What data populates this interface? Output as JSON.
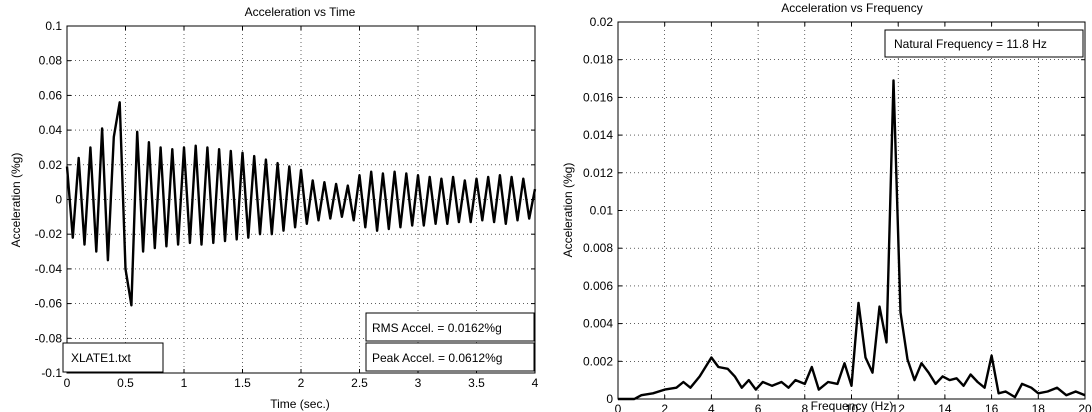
{
  "chart_data": [
    {
      "type": "line",
      "title": "Acceleration vs Time",
      "xlabel": "Time (sec.)",
      "ylabel": "Acceleration (%g)",
      "xlim": [
        0,
        4
      ],
      "ylim": [
        -0.1,
        0.1
      ],
      "xticks": [
        0,
        0.5,
        1,
        1.5,
        2,
        2.5,
        3,
        3.5,
        4
      ],
      "yticks": [
        -0.1,
        -0.08,
        -0.06,
        -0.04,
        -0.02,
        0,
        0.02,
        0.04,
        0.06,
        0.08,
        0.1
      ],
      "xtick_labels": [
        "0",
        "0.5",
        "1",
        "1.5",
        "2",
        "2.5",
        "3",
        "3.5",
        "4"
      ],
      "ytick_labels": [
        "-0.1",
        "-0.08",
        "-0.06",
        "-0.04",
        "-0.02",
        "0",
        "0.02",
        "0.04",
        "0.06",
        "0.08",
        "0.1"
      ],
      "grid": true,
      "line_color": "#000000",
      "annotations": {
        "file_label": "XLATE1.txt",
        "rms": "RMS Accel. = 0.0162%g",
        "peak": "Peak Accel. = 0.0612%g"
      },
      "series": [
        {
          "x": [
            0.0,
            0.05,
            0.1,
            0.15,
            0.2,
            0.25,
            0.3,
            0.35,
            0.4,
            0.45,
            0.5,
            0.55,
            0.6,
            0.65,
            0.7,
            0.75,
            0.8,
            0.85,
            0.9,
            0.95,
            1.0,
            1.05,
            1.1,
            1.15,
            1.2,
            1.25,
            1.3,
            1.35,
            1.4,
            1.45,
            1.5,
            1.55,
            1.6,
            1.65,
            1.7,
            1.75,
            1.8,
            1.85,
            1.9,
            1.95,
            2.0,
            2.05,
            2.1,
            2.15,
            2.2,
            2.25,
            2.3,
            2.35,
            2.4,
            2.45,
            2.5,
            2.55,
            2.6,
            2.65,
            2.7,
            2.75,
            2.8,
            2.85,
            2.9,
            2.95,
            3.0,
            3.05,
            3.1,
            3.15,
            3.2,
            3.25,
            3.3,
            3.35,
            3.4,
            3.45,
            3.5,
            3.55,
            3.6,
            3.65,
            3.7,
            3.75,
            3.8,
            3.85,
            3.9,
            3.95,
            4.0
          ],
          "values": [
            0.019,
            -0.022,
            0.024,
            -0.026,
            0.03,
            -0.03,
            0.041,
            -0.035,
            0.036,
            0.056,
            -0.04,
            -0.061,
            0.039,
            -0.03,
            0.033,
            -0.028,
            0.03,
            -0.027,
            0.029,
            -0.026,
            0.03,
            -0.025,
            0.031,
            -0.026,
            0.03,
            -0.025,
            0.029,
            -0.024,
            0.028,
            -0.023,
            0.027,
            -0.022,
            0.025,
            -0.02,
            0.023,
            -0.02,
            0.021,
            -0.018,
            0.019,
            -0.016,
            0.017,
            -0.014,
            0.011,
            -0.012,
            0.01,
            -0.011,
            0.009,
            -0.01,
            0.008,
            -0.012,
            0.014,
            -0.016,
            0.016,
            -0.018,
            0.015,
            -0.017,
            0.016,
            -0.016,
            0.015,
            -0.015,
            0.014,
            -0.015,
            0.013,
            -0.014,
            0.012,
            -0.014,
            0.013,
            -0.013,
            0.011,
            -0.013,
            0.012,
            -0.012,
            0.013,
            -0.013,
            0.014,
            -0.014,
            0.013,
            -0.012,
            0.012,
            -0.011,
            0.006
          ]
        }
      ]
    },
    {
      "type": "line",
      "title": "Acceleration vs Frequency",
      "xlabel": "Frequency (Hz)",
      "ylabel": "Acceleration (%g)",
      "xlim": [
        0,
        20
      ],
      "ylim": [
        0,
        0.02
      ],
      "xticks": [
        0,
        2,
        4,
        6,
        8,
        10,
        12,
        14,
        16,
        18,
        20
      ],
      "yticks": [
        0,
        0.002,
        0.004,
        0.006,
        0.008,
        0.01,
        0.012,
        0.014,
        0.016,
        0.018,
        0.02
      ],
      "xtick_labels": [
        "0",
        "2",
        "4",
        "6",
        "8",
        "10",
        "12",
        "14",
        "16",
        "18",
        "20"
      ],
      "ytick_labels": [
        "0",
        "0.002",
        "0.004",
        "0.006",
        "0.008",
        "0.01",
        "0.012",
        "0.014",
        "0.016",
        "0.018",
        "0.02"
      ],
      "grid": true,
      "line_color": "#000000",
      "annotations": {
        "natural_frequency": "Natural Frequency = 11.8 Hz"
      },
      "series": [
        {
          "x": [
            0.0,
            0.7,
            1.0,
            1.5,
            2.0,
            2.5,
            2.8,
            3.1,
            3.5,
            4.0,
            4.3,
            4.7,
            5.0,
            5.3,
            5.6,
            5.9,
            6.2,
            6.6,
            7.0,
            7.3,
            7.6,
            8.0,
            8.3,
            8.6,
            9.0,
            9.4,
            9.7,
            10.0,
            10.3,
            10.6,
            10.9,
            11.2,
            11.5,
            11.8,
            12.1,
            12.4,
            12.7,
            13.0,
            13.3,
            13.6,
            13.9,
            14.2,
            14.5,
            14.8,
            15.1,
            15.4,
            15.7,
            16.0,
            16.3,
            16.6,
            17.0,
            17.3,
            17.7,
            18.0,
            18.4,
            18.8,
            19.2,
            19.6,
            20.0
          ],
          "values": [
            0.0,
            0.0,
            0.0002,
            0.0003,
            0.0005,
            0.0006,
            0.0009,
            0.0006,
            0.0012,
            0.0022,
            0.0017,
            0.0016,
            0.0012,
            0.0006,
            0.001,
            0.0005,
            0.0009,
            0.0007,
            0.0009,
            0.0006,
            0.001,
            0.0008,
            0.0017,
            0.0005,
            0.0009,
            0.0008,
            0.0019,
            0.0007,
            0.0051,
            0.0022,
            0.0014,
            0.0049,
            0.003,
            0.0169,
            0.0046,
            0.0021,
            0.001,
            0.0019,
            0.0014,
            0.0008,
            0.0012,
            0.001,
            0.0011,
            0.0007,
            0.0013,
            0.0009,
            0.0006,
            0.0023,
            0.0003,
            0.0004,
            0.0001,
            0.0008,
            0.0006,
            0.0003,
            0.0004,
            0.0006,
            0.0002,
            0.0004,
            0.0002
          ]
        }
      ]
    }
  ]
}
